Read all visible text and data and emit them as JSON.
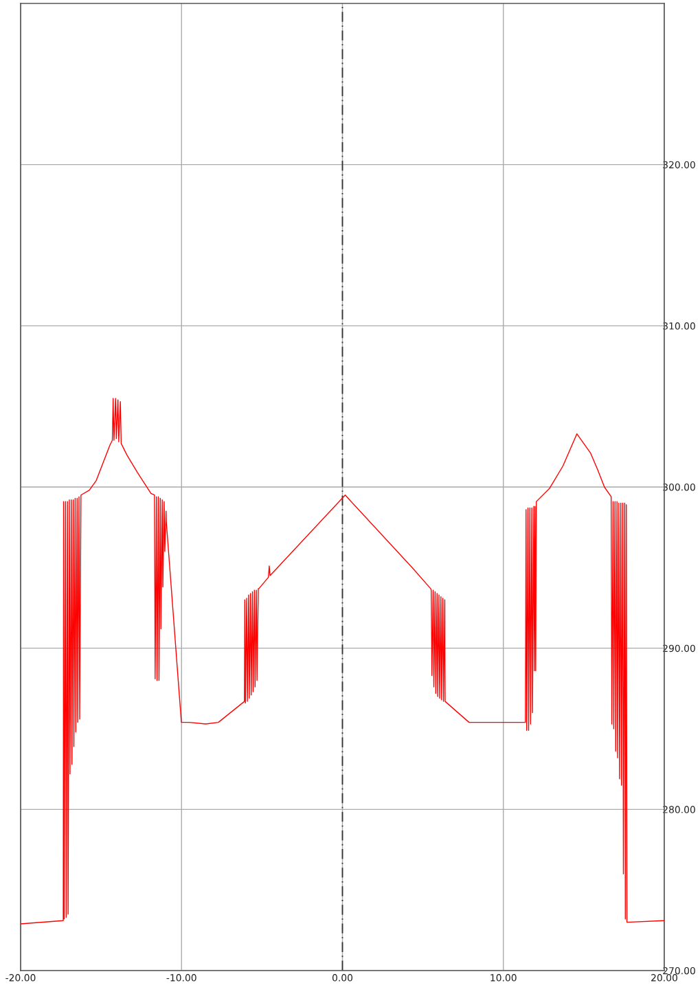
{
  "chart_data": {
    "type": "line",
    "x": [
      -20,
      -17.35,
      -17.33,
      -17.29,
      -17.21,
      -17.17,
      -17.09,
      -17.05,
      -16.97,
      -16.93,
      -16.85,
      -16.81,
      -16.73,
      -16.69,
      -16.61,
      -16.57,
      -16.49,
      -16.45,
      -16.37,
      -16.33,
      -16.25,
      -15.73,
      -15.3,
      -14.45,
      -14.3,
      -14.25,
      -14.2,
      -14.1,
      -14.05,
      -13.95,
      -13.9,
      -13.8,
      -13.75,
      -13.4,
      -12.74,
      -11.9,
      -11.68,
      -11.64,
      -11.56,
      -11.52,
      -11.44,
      -11.4,
      -11.32,
      -11.28,
      -11.2,
      -11.16,
      -11.08,
      -11.04,
      -10.96,
      -10.95,
      -10.01,
      -9.5,
      -8.5,
      -7.71,
      -6.09,
      -6.07,
      -6.03,
      -5.95,
      -5.91,
      -5.83,
      -5.79,
      -5.71,
      -5.67,
      -5.59,
      -5.55,
      -5.47,
      -5.43,
      -5.35,
      -5.31,
      -5.23,
      -5.19,
      -4.6,
      -4.55,
      -4.5,
      0.17,
      4.33,
      5.48,
      5.52,
      5.56,
      5.64,
      5.68,
      5.76,
      5.8,
      5.88,
      5.92,
      6.0,
      6.04,
      6.12,
      6.16,
      6.24,
      6.28,
      6.36,
      6.38,
      7.87,
      9.5,
      11.37,
      11.41,
      11.45,
      11.53,
      11.57,
      11.65,
      11.69,
      11.77,
      11.81,
      11.89,
      11.93,
      11.97,
      12.01,
      12.05,
      12.86,
      13.7,
      14.57,
      15.42,
      15.85,
      16.28,
      16.7,
      16.74,
      16.82,
      16.86,
      16.94,
      16.98,
      17.06,
      17.1,
      17.18,
      17.22,
      17.3,
      17.34,
      17.42,
      17.46,
      17.54,
      17.58,
      17.64,
      17.68,
      20
    ],
    "series": [
      {
        "color": "#ff0000",
        "values": [
          272.9,
          273.1,
          299.1,
          273.2,
          299.1,
          273.3,
          299.1,
          273.5,
          299.2,
          282.2,
          299.2,
          282.8,
          299.2,
          283.9,
          299.3,
          284.8,
          299.3,
          285.4,
          299.4,
          285.6,
          299.5,
          299.8,
          300.4,
          302.6,
          302.9,
          305.5,
          302.9,
          305.5,
          303.0,
          305.4,
          302.8,
          305.3,
          302.7,
          302.0,
          300.9,
          299.6,
          299.5,
          288.1,
          299.4,
          288.0,
          299.4,
          288.0,
          299.3,
          291.2,
          299.2,
          293.8,
          299.1,
          296.0,
          298.5,
          297.9,
          285.4,
          285.4,
          285.3,
          285.4,
          286.7,
          293.0,
          286.6,
          293.1,
          286.7,
          293.3,
          286.9,
          293.4,
          287.1,
          293.5,
          287.3,
          293.6,
          287.6,
          293.6,
          288.0,
          293.7,
          293.7,
          294.4,
          295.1,
          294.5,
          299.5,
          295.0,
          293.7,
          293.6,
          288.3,
          293.6,
          287.6,
          293.5,
          287.2,
          293.4,
          287.0,
          293.3,
          286.9,
          293.2,
          286.8,
          293.1,
          286.7,
          293.0,
          286.7,
          285.4,
          285.4,
          285.4,
          298.6,
          284.9,
          298.7,
          284.9,
          298.7,
          285.3,
          298.7,
          286.0,
          298.8,
          288.6,
          298.8,
          288.6,
          299.1,
          299.9,
          301.3,
          303.3,
          302.1,
          301.1,
          300.0,
          299.4,
          285.3,
          299.1,
          285.0,
          299.1,
          283.6,
          299.1,
          283.2,
          299.0,
          281.9,
          299.0,
          281.5,
          299.0,
          276.0,
          299.0,
          273.2,
          298.9,
          273.0,
          273.1
        ]
      }
    ],
    "xlim": [
      -20,
      20
    ],
    "xticks": [
      {
        "value": -20,
        "label": "-20.00"
      },
      {
        "value": -10,
        "label": "-10.00"
      },
      {
        "value": 0,
        "label": "0.00"
      },
      {
        "value": 10,
        "label": "10.00"
      },
      {
        "value": 20,
        "label": "20.00"
      }
    ],
    "ylim": [
      270,
      330
    ],
    "yticks": [
      {
        "value": 270,
        "label": "270.00"
      },
      {
        "value": 280,
        "label": "280.00"
      },
      {
        "value": 290,
        "label": "290.00"
      },
      {
        "value": 300,
        "label": "300.00"
      },
      {
        "value": 310,
        "label": "310.00"
      },
      {
        "value": 320,
        "label": "320.00"
      }
    ],
    "ref_lines": [
      {
        "axis": "x",
        "value": 0,
        "color": "#333333",
        "line_style": "dashed"
      }
    ],
    "grid": true,
    "line_style": "solid",
    "marker": "none"
  }
}
